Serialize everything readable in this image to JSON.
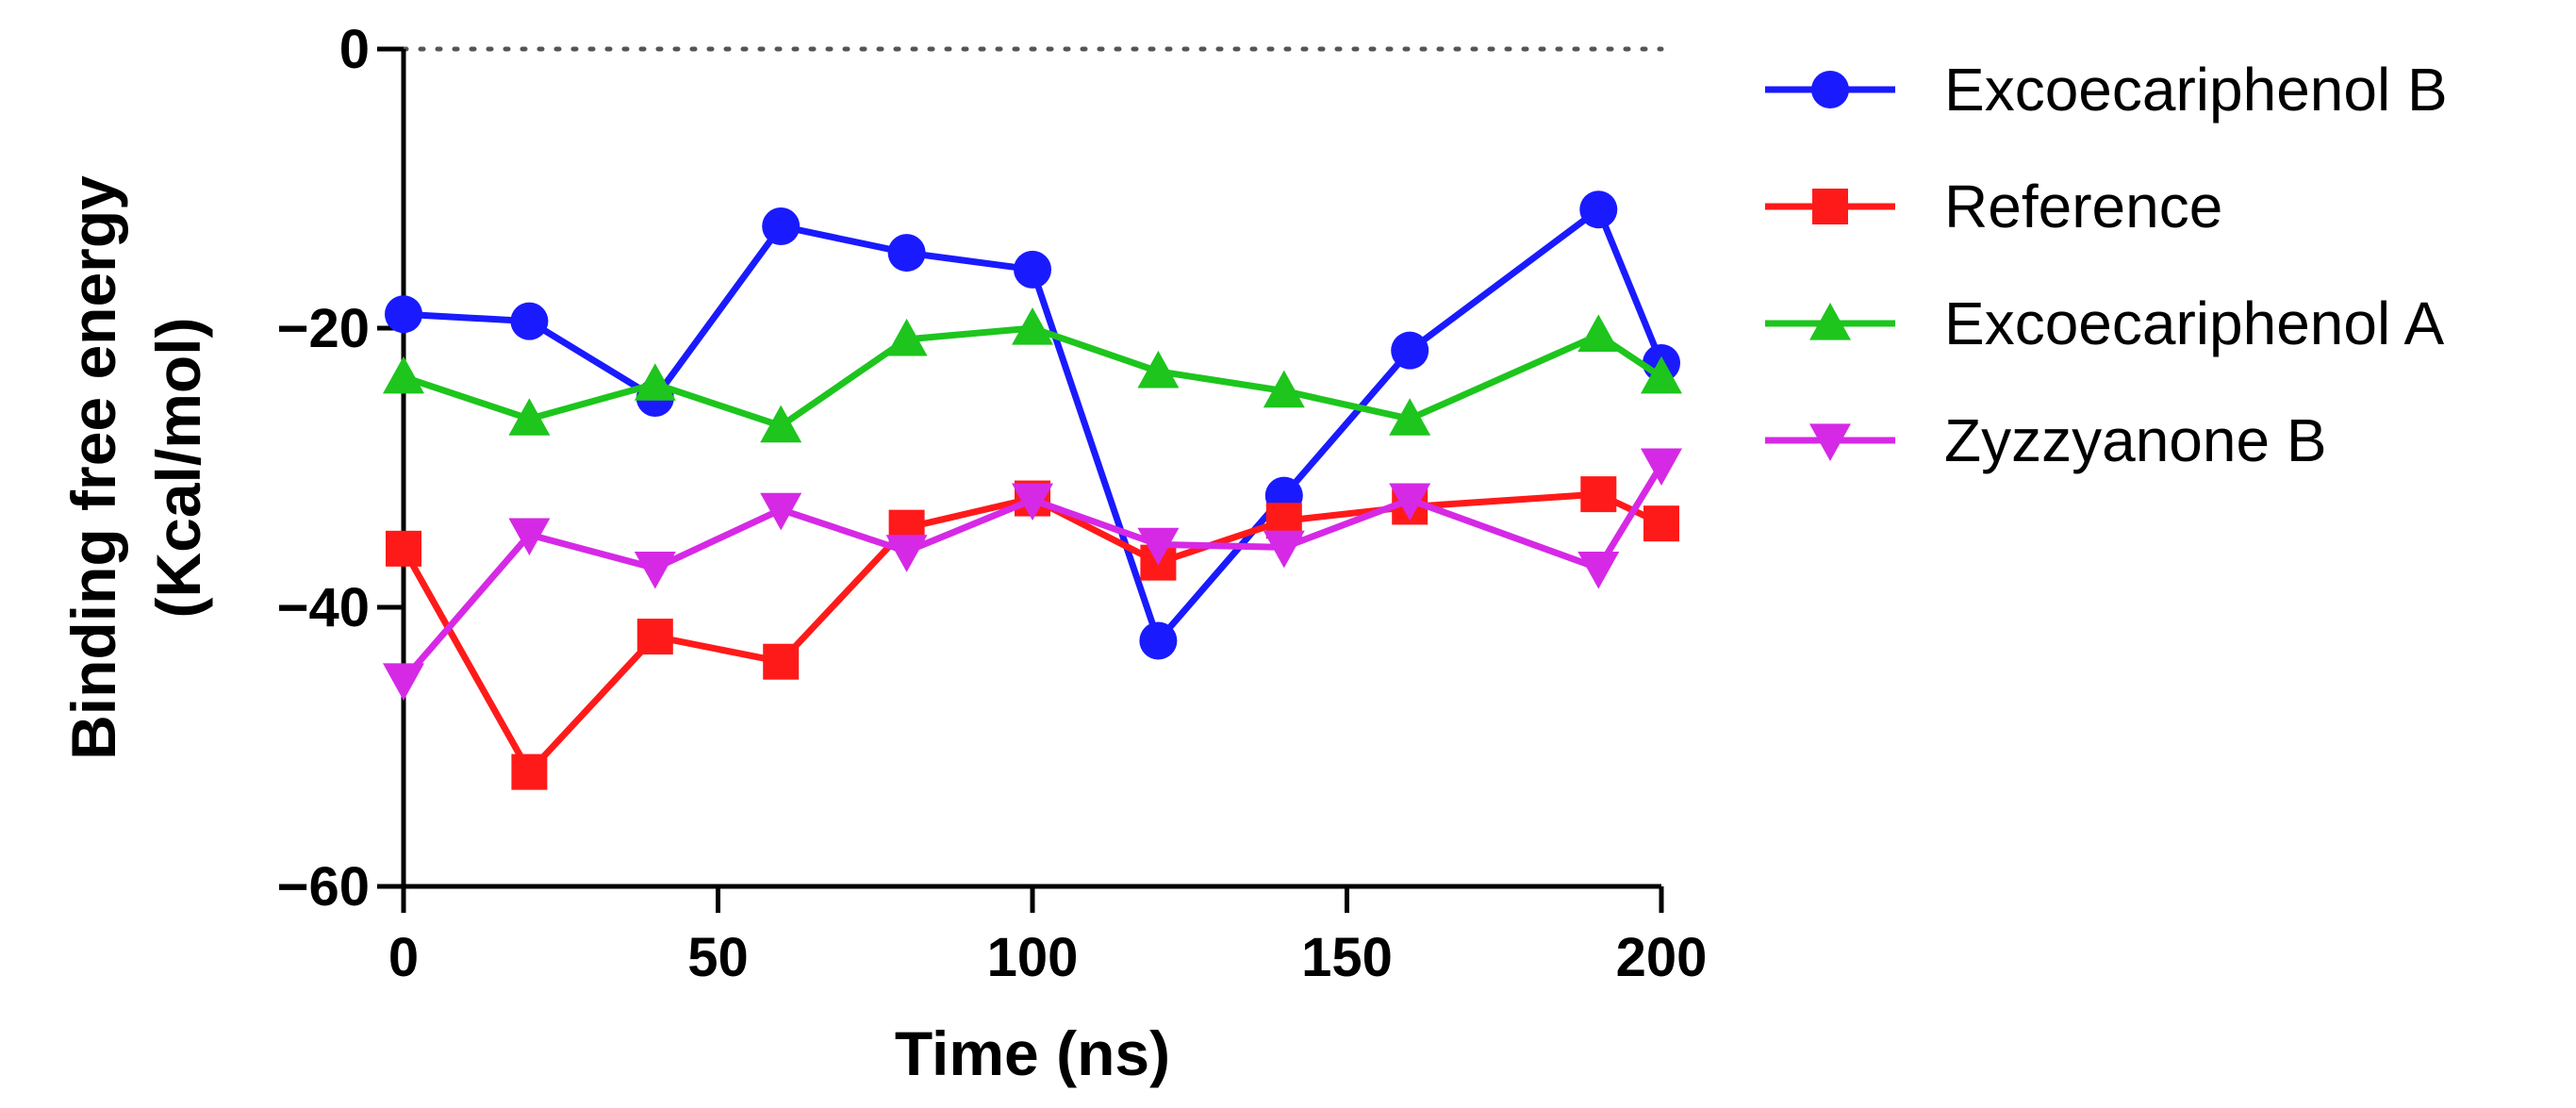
{
  "chart_data": {
    "type": "line",
    "title": "",
    "xlabel": "Time (ns)",
    "ylabel_lines": [
      "Binding free energy",
      "(Kcal/mol)"
    ],
    "xlim": [
      0,
      200
    ],
    "ylim": [
      -60,
      0
    ],
    "xticks": [
      0,
      50,
      100,
      150,
      200
    ],
    "yticks": [
      0,
      -20,
      -40,
      -60
    ],
    "xtick_labels": [
      "0",
      "50",
      "100",
      "150",
      "200"
    ],
    "ytick_labels": [
      "0",
      "−20",
      "−40",
      "−60"
    ],
    "zero_reference_line": "dotted",
    "legend_position": "right",
    "series": [
      {
        "name": "Excoecariphenol B",
        "color": "#1a1aff",
        "marker": "circle",
        "x": [
          0,
          20,
          40,
          60,
          80,
          100,
          120,
          140,
          160,
          190,
          200
        ],
        "y": [
          -19,
          -19.5,
          -25,
          -12.7,
          -14.6,
          -15.8,
          -42.4,
          -32,
          -21.6,
          -11.5,
          -22.5
        ]
      },
      {
        "name": "Reference",
        "color": "#ff1a1a",
        "marker": "square",
        "x": [
          0,
          20,
          40,
          60,
          80,
          100,
          120,
          140,
          160,
          190,
          200
        ],
        "y": [
          -35.8,
          -51.8,
          -42.1,
          -43.9,
          -34.3,
          -32.2,
          -36.8,
          -33.8,
          -32.8,
          -31.9,
          -34
        ]
      },
      {
        "name": "Excoecariphenol A",
        "color": "#1dc51d",
        "marker": "triangle-up",
        "x": [
          0,
          20,
          40,
          60,
          80,
          100,
          120,
          140,
          160,
          190,
          200
        ],
        "y": [
          -23.5,
          -26.5,
          -24,
          -27,
          -20.8,
          -20,
          -23.1,
          -24.5,
          -26.5,
          -20.5,
          -23.5
        ]
      },
      {
        "name": "Zyzzyanone B",
        "color": "#d629e6",
        "marker": "triangle-down",
        "x": [
          0,
          20,
          40,
          60,
          80,
          100,
          120,
          140,
          160,
          190,
          200
        ],
        "y": [
          -45.2,
          -34.8,
          -37.2,
          -33,
          -36,
          -32.3,
          -35.5,
          -35.7,
          -32.3,
          -37.2,
          -29.8
        ]
      }
    ]
  }
}
